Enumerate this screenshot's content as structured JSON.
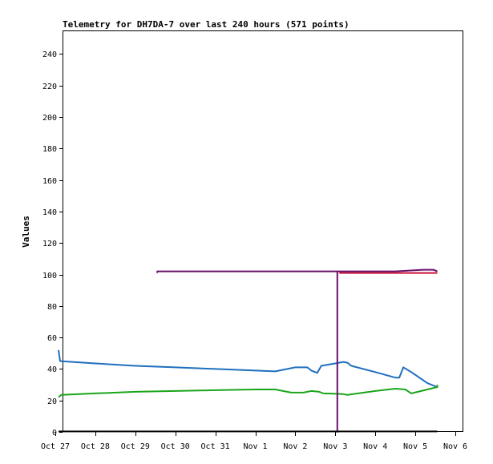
{
  "chart_data": {
    "type": "line",
    "title": "Telemetry for DH7DA-7 over last 240 hours (571 points)",
    "xlabel": "",
    "ylabel": "Values",
    "ylim": [
      0,
      255
    ],
    "xlim": [
      "Oct 27",
      "Nov 6"
    ],
    "y_ticks": [
      0,
      20,
      40,
      60,
      80,
      100,
      120,
      140,
      160,
      180,
      200,
      220,
      240
    ],
    "x_tick_labels": [
      "Oct 27",
      "Oct 28",
      "Oct 29",
      "Oct 30",
      "Oct 31",
      "Nov 1",
      "Nov 2",
      "Nov 3",
      "Nov 4",
      "Nov 5",
      "Nov 6"
    ],
    "grid": false,
    "legend": "none",
    "series": [
      {
        "color": "#1f6fbf",
        "points": [
          [
            0.08,
            52
          ],
          [
            0.12,
            45
          ],
          [
            1.0,
            43.5
          ],
          [
            2.0,
            42
          ],
          [
            3.0,
            41
          ],
          [
            4.0,
            40
          ],
          [
            5.0,
            39
          ],
          [
            5.5,
            38.5
          ],
          [
            6.0,
            41
          ],
          [
            6.3,
            41
          ],
          [
            6.4,
            39
          ],
          [
            6.55,
            37.5
          ],
          [
            6.65,
            42
          ],
          [
            7.0,
            43.5
          ],
          [
            7.2,
            44.5
          ],
          [
            7.3,
            44
          ],
          [
            7.4,
            42
          ],
          [
            8.0,
            38
          ],
          [
            8.5,
            34.5
          ],
          [
            8.6,
            34.5
          ],
          [
            8.7,
            41
          ],
          [
            8.9,
            38
          ],
          [
            9.3,
            31
          ],
          [
            9.55,
            28.5
          ]
        ]
      },
      {
        "color": "#1aa51a",
        "points": [
          [
            0.08,
            22
          ],
          [
            0.15,
            23.5
          ],
          [
            1.0,
            24.5
          ],
          [
            2.0,
            25.5
          ],
          [
            3.0,
            26
          ],
          [
            4.0,
            26.5
          ],
          [
            5.0,
            27
          ],
          [
            5.5,
            27
          ],
          [
            5.9,
            25
          ],
          [
            6.2,
            25
          ],
          [
            6.4,
            26
          ],
          [
            6.6,
            25.5
          ],
          [
            6.7,
            24.5
          ],
          [
            7.2,
            24
          ],
          [
            7.3,
            23.5
          ],
          [
            8.0,
            26
          ],
          [
            8.5,
            27.5
          ],
          [
            8.75,
            27
          ],
          [
            8.9,
            24.5
          ],
          [
            9.55,
            28.5
          ],
          [
            9.55,
            30
          ]
        ]
      },
      {
        "color": "#c8143c",
        "points": [
          [
            7.1,
            101
          ],
          [
            9.55,
            101
          ]
        ]
      },
      {
        "color": "#6a0f6a",
        "points": [
          [
            2.55,
            101
          ],
          [
            2.55,
            102
          ],
          [
            7.05,
            102
          ],
          [
            7.05,
            0
          ],
          [
            7.05,
            102
          ],
          [
            8.5,
            102
          ],
          [
            9.2,
            103
          ],
          [
            9.45,
            103
          ],
          [
            9.55,
            102
          ]
        ]
      },
      {
        "color": "#000000",
        "points": [
          [
            0.08,
            0.3
          ],
          [
            9.55,
            0.3
          ]
        ]
      }
    ]
  }
}
